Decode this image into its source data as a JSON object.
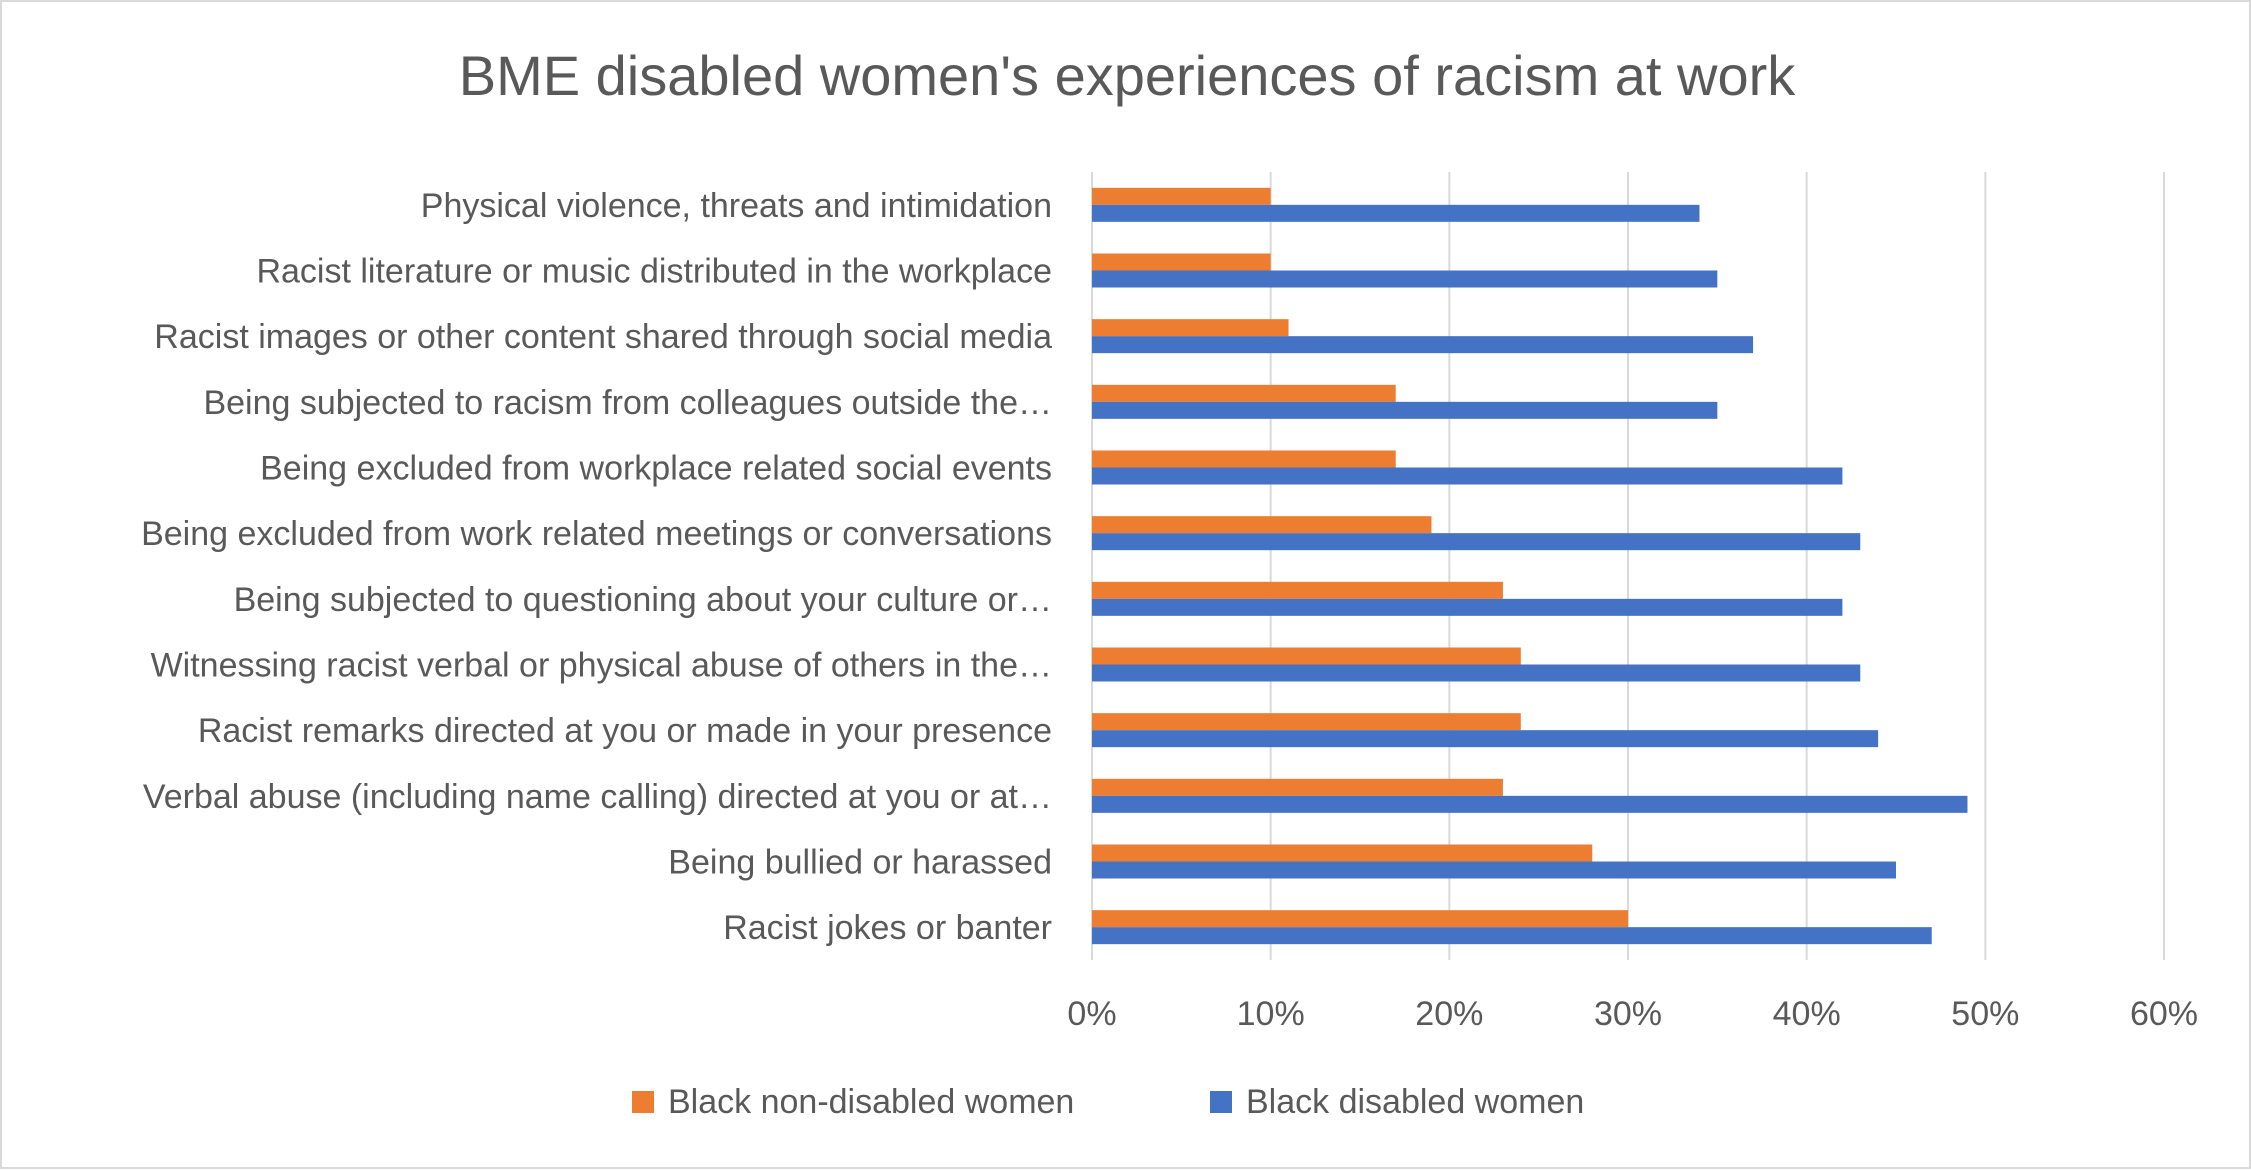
{
  "chart_data": {
    "type": "bar",
    "orientation": "horizontal",
    "title": "BME disabled women's experiences of racism at work",
    "categories": [
      "Physical violence, threats and intimidation",
      "Racist literature or music distributed in the workplace",
      "Racist images or other content shared through social media",
      "Being subjected to racism from colleagues outside the…",
      "Being excluded from workplace related social events",
      "Being excluded from work related meetings or conversations",
      "Being subjected to questioning about your culture or…",
      "Witnessing racist verbal or physical abuse of others in the…",
      "Racist remarks directed at you or made in your presence",
      "Verbal abuse (including name calling) directed at you or at…",
      "Being bullied or harassed",
      "Racist jokes or banter"
    ],
    "series": [
      {
        "name": "Black non-disabled women",
        "color": "#ED7D31",
        "values": [
          10,
          10,
          11,
          17,
          17,
          19,
          23,
          24,
          24,
          23,
          28,
          30
        ]
      },
      {
        "name": "Black disabled women",
        "color": "#4472C4",
        "values": [
          34,
          35,
          37,
          35,
          42,
          43,
          42,
          43,
          44,
          49,
          45,
          47
        ]
      }
    ],
    "xlim": [
      0,
      60
    ],
    "ticks": [
      "0%",
      "10%",
      "20%",
      "30%",
      "40%",
      "50%",
      "60%"
    ],
    "grid": true,
    "legend_position": "bottom",
    "gridline_color": "#d9d9d9",
    "text_color": "#595959"
  }
}
